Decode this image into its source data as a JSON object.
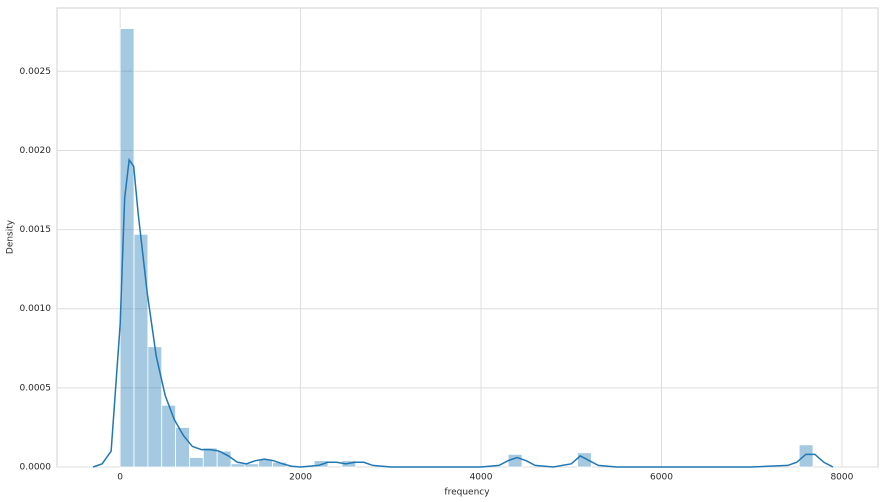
{
  "chart_data": {
    "type": "histogram",
    "xlabel": "frequency",
    "ylabel": "Density",
    "bins": [
      0,
      153.6,
      307.2,
      460.8,
      614.4,
      768,
      921.6,
      1075.2,
      1228.8,
      1382.4,
      1536,
      1689.6,
      1843.2,
      1996.8,
      2150.4,
      2304,
      2457.6,
      2611.2,
      2764.8,
      2918.4,
      3072,
      3225.6,
      3379.2,
      3532.8,
      3686.4,
      3840,
      3993.6,
      4147.2,
      4300.8,
      4454.4,
      4608,
      4761.6,
      4915.2,
      5068.8,
      5222.4,
      5376,
      5529.6,
      5683.2,
      5836.8,
      5990.4,
      6144,
      6297.6,
      6451.2,
      6604.8,
      6758.4,
      6912,
      7065.6,
      7219.2,
      7372.8,
      7526.4,
      7680
    ],
    "values": [
      0.00277,
      0.00147,
      0.00076,
      0.00039,
      0.00025,
      6e-05,
      0.00012,
      0.0001,
      2e-05,
      2e-05,
      5e-05,
      3e-05,
      0,
      0,
      4e-05,
      0,
      4e-05,
      0,
      0,
      0,
      0,
      0,
      0,
      0,
      0,
      0,
      0,
      0,
      8e-05,
      0,
      0,
      0,
      0,
      9e-05,
      0,
      0,
      0,
      0,
      0,
      0,
      0,
      0,
      0,
      0,
      0,
      0,
      0,
      0,
      0,
      0.00014
    ],
    "color": "#1f77b4",
    "kde": {
      "color": "#1f77b4",
      "x": [
        -300,
        -200,
        -100,
        0,
        50,
        100,
        150,
        200,
        300,
        400,
        500,
        600,
        700,
        800,
        900,
        1000,
        1100,
        1200,
        1300,
        1400,
        1500,
        1600,
        1700,
        1800,
        1900,
        2000,
        2200,
        2300,
        2400,
        2500,
        2600,
        2700,
        2800,
        3000,
        4000,
        4200,
        4300,
        4400,
        4500,
        4600,
        4800,
        5000,
        5100,
        5200,
        5300,
        5500,
        7000,
        7400,
        7500,
        7600,
        7700,
        7800,
        7900
      ],
      "values": [
        0,
        2e-05,
        0.0001,
        0.0009,
        0.0017,
        0.00194,
        0.0019,
        0.0016,
        0.0011,
        0.0007,
        0.00045,
        0.0003,
        0.0002,
        0.00013,
        0.00011,
        0.00011,
        0.0001,
        7e-05,
        3e-05,
        2e-05,
        4e-05,
        5e-05,
        4e-05,
        2e-05,
        5e-06,
        0,
        1e-05,
        3e-05,
        3e-05,
        2e-05,
        3e-05,
        3e-05,
        1e-05,
        0,
        0,
        1e-05,
        4e-05,
        6e-05,
        4e-05,
        1e-05,
        0,
        2e-05,
        7e-05,
        4e-05,
        1e-05,
        0,
        0,
        1e-05,
        3e-05,
        8e-05,
        8e-05,
        3e-05,
        0
      ]
    },
    "xlim": [
      -700,
      8400
    ],
    "ylim": [
      0,
      0.0029
    ],
    "xticks": [
      0,
      2000,
      4000,
      6000,
      8000
    ],
    "yticks": [
      {
        "value": 0,
        "label": "0.0000"
      },
      {
        "value": 0.0005,
        "label": "0.0005"
      },
      {
        "value": 0.001,
        "label": "0.0010"
      },
      {
        "value": 0.0015,
        "label": "0.0015"
      },
      {
        "value": 0.002,
        "label": "0.0020"
      },
      {
        "value": 0.0025,
        "label": "0.0025"
      }
    ],
    "grid": true
  }
}
